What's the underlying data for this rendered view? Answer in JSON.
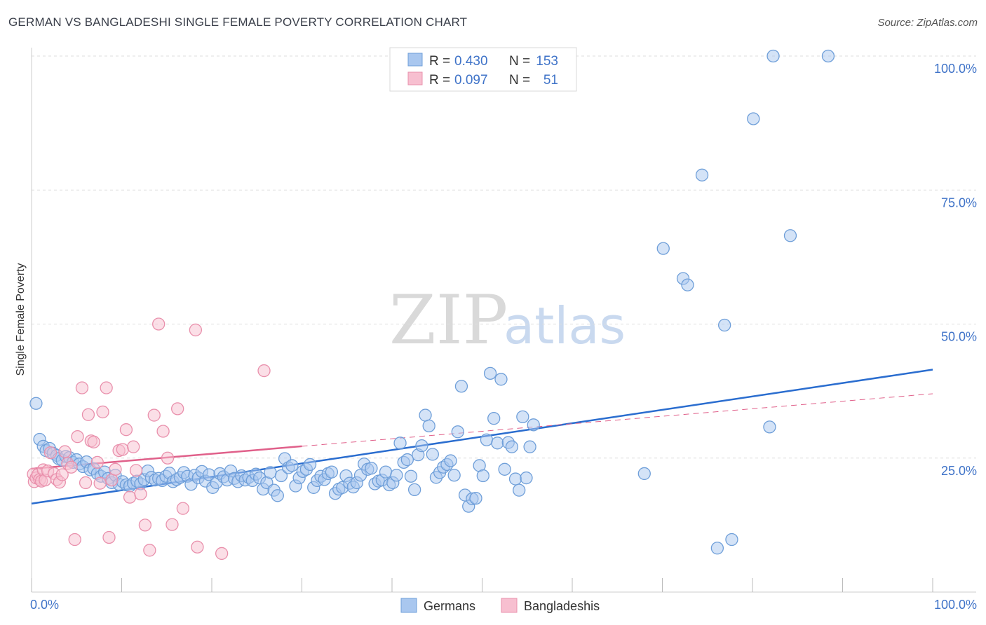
{
  "title": "GERMAN VS BANGLADESHI SINGLE FEMALE POVERTY CORRELATION CHART",
  "source": "Source: ZipAtlas.com",
  "watermark": {
    "zip": "ZIP",
    "atlas": "atlas"
  },
  "colors": {
    "german_fill": "#a9c7ef",
    "german_stroke": "#6f9fd9",
    "german_line": "#2a6dcf",
    "bangladeshi_fill": "#f7bfd0",
    "bangladeshi_stroke": "#e990ac",
    "bangladeshi_line": "#e0608a",
    "tick_text": "#3f73c8",
    "grid": "#dddddd"
  },
  "legend": {
    "rows": [
      {
        "r_label": "R =",
        "r_value": "0.430",
        "n_label": "N =",
        "n_value": "153"
      },
      {
        "r_label": "R =",
        "r_value": "0.097",
        "n_label": "N =",
        "n_value": "51"
      }
    ]
  },
  "bottom_legend": [
    "Germans",
    "Bangladeshis"
  ],
  "chart_data": {
    "type": "scatter",
    "title": "GERMAN VS BANGLADESHI SINGLE FEMALE POVERTY CORRELATION CHART",
    "xlabel": "",
    "ylabel": "Single Female Poverty",
    "xlim": [
      0,
      100
    ],
    "ylim": [
      0,
      100
    ],
    "x_tick_labels": [
      "0.0%",
      "100.0%"
    ],
    "y_ticks": [
      25,
      50,
      75,
      100
    ],
    "y_tick_labels": [
      "25.0%",
      "50.0%",
      "75.0%",
      "100.0%"
    ],
    "grid": true,
    "legend_placement": "top-center",
    "series": [
      {
        "name": "Germans",
        "r": 0.43,
        "n": 153,
        "trend": {
          "x": [
            0,
            100
          ],
          "y": [
            16.5,
            41.5
          ],
          "dashed_from": null
        },
        "points": [
          [
            0.5,
            35.2
          ],
          [
            0.9,
            28.5
          ],
          [
            1.3,
            27.2
          ],
          [
            1.6,
            26.4
          ],
          [
            2.0,
            26.8
          ],
          [
            2.4,
            25.9
          ],
          [
            2.8,
            25.5
          ],
          [
            3.0,
            24.9
          ],
          [
            3.4,
            24.6
          ],
          [
            3.8,
            25.3
          ],
          [
            4.2,
            25.1
          ],
          [
            4.6,
            24.2
          ],
          [
            5.0,
            24.7
          ],
          [
            5.3,
            23.9
          ],
          [
            5.7,
            23.4
          ],
          [
            6.1,
            24.3
          ],
          [
            6.5,
            22.8
          ],
          [
            6.9,
            23.0
          ],
          [
            7.3,
            22.1
          ],
          [
            7.7,
            21.6
          ],
          [
            8.1,
            22.4
          ],
          [
            8.5,
            21.2
          ],
          [
            8.9,
            20.4
          ],
          [
            9.3,
            21.8
          ],
          [
            9.7,
            20.1
          ],
          [
            10.1,
            20.6
          ],
          [
            10.5,
            20.0
          ],
          [
            10.9,
            19.8
          ],
          [
            11.3,
            20.3
          ],
          [
            11.7,
            20.7
          ],
          [
            12.1,
            20.2
          ],
          [
            12.5,
            21.0
          ],
          [
            12.9,
            22.6
          ],
          [
            13.3,
            21.4
          ],
          [
            13.7,
            20.9
          ],
          [
            14.1,
            21.2
          ],
          [
            14.5,
            20.8
          ],
          [
            14.9,
            21.6
          ],
          [
            15.3,
            22.2
          ],
          [
            15.7,
            20.6
          ],
          [
            16.1,
            21.0
          ],
          [
            16.5,
            21.4
          ],
          [
            16.9,
            22.3
          ],
          [
            17.3,
            21.6
          ],
          [
            17.7,
            20.1
          ],
          [
            18.1,
            21.8
          ],
          [
            18.5,
            21.3
          ],
          [
            18.9,
            22.5
          ],
          [
            19.3,
            20.7
          ],
          [
            19.7,
            21.9
          ],
          [
            20.1,
            19.5
          ],
          [
            20.5,
            20.4
          ],
          [
            20.9,
            22.1
          ],
          [
            21.3,
            21.5
          ],
          [
            21.7,
            20.9
          ],
          [
            22.1,
            22.6
          ],
          [
            22.5,
            21.2
          ],
          [
            22.9,
            20.6
          ],
          [
            23.3,
            21.7
          ],
          [
            23.7,
            20.9
          ],
          [
            24.1,
            21.4
          ],
          [
            24.5,
            20.8
          ],
          [
            24.9,
            22.0
          ],
          [
            25.3,
            21.3
          ],
          [
            25.7,
            19.2
          ],
          [
            26.1,
            20.4
          ],
          [
            26.5,
            22.3
          ],
          [
            26.9,
            19.0
          ],
          [
            27.3,
            18.0
          ],
          [
            27.7,
            21.7
          ],
          [
            28.1,
            24.9
          ],
          [
            28.5,
            23.2
          ],
          [
            28.9,
            23.6
          ],
          [
            29.3,
            19.8
          ],
          [
            29.7,
            21.3
          ],
          [
            30.1,
            22.5
          ],
          [
            30.5,
            22.9
          ],
          [
            30.9,
            23.8
          ],
          [
            31.3,
            19.5
          ],
          [
            31.7,
            20.8
          ],
          [
            32.1,
            21.6
          ],
          [
            32.5,
            21.0
          ],
          [
            32.9,
            22.1
          ],
          [
            33.3,
            22.4
          ],
          [
            33.7,
            18.4
          ],
          [
            34.1,
            19.2
          ],
          [
            34.5,
            19.5
          ],
          [
            34.9,
            21.7
          ],
          [
            35.3,
            20.3
          ],
          [
            35.7,
            19.6
          ],
          [
            36.1,
            20.4
          ],
          [
            36.5,
            21.8
          ],
          [
            36.9,
            23.9
          ],
          [
            37.3,
            22.9
          ],
          [
            37.7,
            23.1
          ],
          [
            38.1,
            20.2
          ],
          [
            38.5,
            20.7
          ],
          [
            38.9,
            20.9
          ],
          [
            39.3,
            22.4
          ],
          [
            39.7,
            20.0
          ],
          [
            40.1,
            20.4
          ],
          [
            40.5,
            21.8
          ],
          [
            40.9,
            27.8
          ],
          [
            41.3,
            24.2
          ],
          [
            41.7,
            24.7
          ],
          [
            42.1,
            21.6
          ],
          [
            42.5,
            19.1
          ],
          [
            42.9,
            25.6
          ],
          [
            43.3,
            27.3
          ],
          [
            43.7,
            33.0
          ],
          [
            44.1,
            31.0
          ],
          [
            44.5,
            25.7
          ],
          [
            44.9,
            21.4
          ],
          [
            45.3,
            22.3
          ],
          [
            45.7,
            23.3
          ],
          [
            46.1,
            23.8
          ],
          [
            46.5,
            24.5
          ],
          [
            46.9,
            21.8
          ],
          [
            47.3,
            29.9
          ],
          [
            47.7,
            38.4
          ],
          [
            48.1,
            18.1
          ],
          [
            48.5,
            16.0
          ],
          [
            48.9,
            17.4
          ],
          [
            49.3,
            17.5
          ],
          [
            49.7,
            23.6
          ],
          [
            50.1,
            21.7
          ],
          [
            50.5,
            28.4
          ],
          [
            50.9,
            40.8
          ],
          [
            51.3,
            32.4
          ],
          [
            51.7,
            27.8
          ],
          [
            52.1,
            39.7
          ],
          [
            52.5,
            22.9
          ],
          [
            52.9,
            27.9
          ],
          [
            53.3,
            27.1
          ],
          [
            53.7,
            21.1
          ],
          [
            54.1,
            19.0
          ],
          [
            54.5,
            32.7
          ],
          [
            54.9,
            21.3
          ],
          [
            55.3,
            27.1
          ],
          [
            55.7,
            31.2
          ],
          [
            68.0,
            22.1
          ],
          [
            70.1,
            64.1
          ],
          [
            72.3,
            58.5
          ],
          [
            72.8,
            57.3
          ],
          [
            74.4,
            77.8
          ],
          [
            76.1,
            8.2
          ],
          [
            76.9,
            49.8
          ],
          [
            77.7,
            9.8
          ],
          [
            80.1,
            88.3
          ],
          [
            81.9,
            30.8
          ],
          [
            82.3,
            100.0
          ],
          [
            84.2,
            66.5
          ],
          [
            88.4,
            100.0
          ]
        ]
      },
      {
        "name": "Bangladeshis",
        "r": 0.097,
        "n": 51,
        "trend": {
          "x": [
            0,
            100
          ],
          "y": [
            23.0,
            37.0
          ],
          "dashed_from": 30
        },
        "points": [
          [
            0.2,
            22.0
          ],
          [
            0.3,
            20.6
          ],
          [
            0.5,
            21.3
          ],
          [
            0.7,
            21.9
          ],
          [
            0.9,
            21.0
          ],
          [
            1.1,
            20.7
          ],
          [
            1.3,
            22.8
          ],
          [
            1.5,
            20.9
          ],
          [
            1.8,
            22.6
          ],
          [
            2.1,
            26.0
          ],
          [
            2.5,
            22.1
          ],
          [
            2.8,
            21.0
          ],
          [
            3.1,
            20.5
          ],
          [
            3.4,
            21.9
          ],
          [
            3.7,
            26.2
          ],
          [
            4.0,
            24.0
          ],
          [
            4.4,
            23.3
          ],
          [
            4.8,
            9.8
          ],
          [
            5.1,
            29.0
          ],
          [
            5.6,
            38.1
          ],
          [
            6.0,
            20.4
          ],
          [
            6.3,
            33.1
          ],
          [
            6.6,
            28.2
          ],
          [
            6.9,
            28.0
          ],
          [
            7.3,
            24.2
          ],
          [
            7.6,
            20.3
          ],
          [
            7.9,
            33.6
          ],
          [
            8.3,
            38.1
          ],
          [
            8.6,
            10.2
          ],
          [
            8.9,
            20.9
          ],
          [
            9.3,
            22.9
          ],
          [
            9.7,
            26.4
          ],
          [
            10.1,
            26.6
          ],
          [
            10.5,
            30.3
          ],
          [
            10.9,
            17.7
          ],
          [
            11.3,
            27.1
          ],
          [
            11.6,
            22.7
          ],
          [
            12.1,
            18.3
          ],
          [
            12.6,
            12.5
          ],
          [
            13.1,
            7.8
          ],
          [
            13.6,
            33.0
          ],
          [
            14.1,
            50.0
          ],
          [
            14.6,
            30.0
          ],
          [
            15.1,
            25.0
          ],
          [
            15.6,
            12.6
          ],
          [
            16.2,
            34.2
          ],
          [
            16.8,
            15.6
          ],
          [
            18.2,
            48.9
          ],
          [
            18.4,
            8.4
          ],
          [
            21.1,
            7.2
          ],
          [
            25.8,
            41.3
          ]
        ]
      }
    ]
  }
}
